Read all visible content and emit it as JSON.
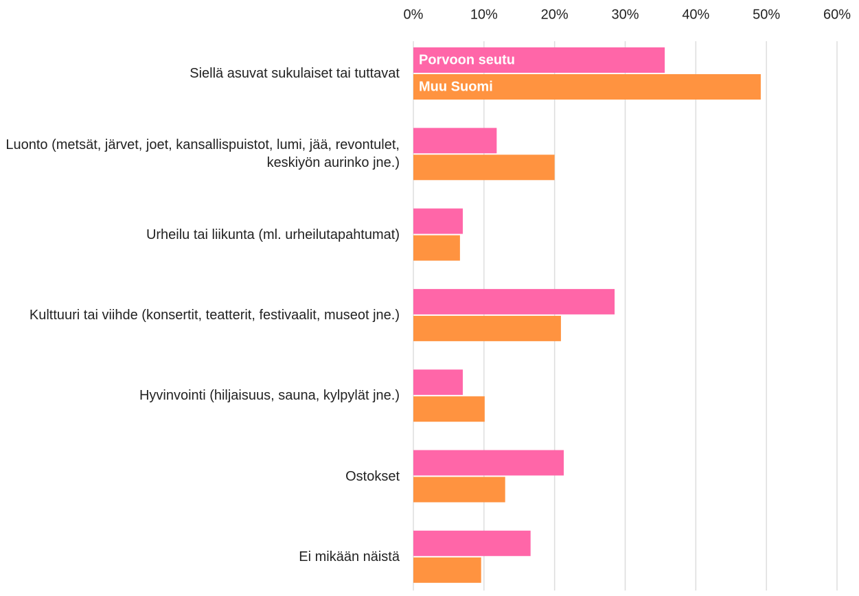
{
  "chart_data": {
    "type": "hbar",
    "categories": [
      "Siellä asuvat sukulaiset tai tuttavat",
      "Luonto (metsät, järvet, joet, kansallispuistot, lumi, jää, revontulet, keskiyön aurinko jne.)",
      "Urheilu tai liikunta (ml. urheilutapahtumat)",
      "Kulttuuri tai viihde (konsertit, teatterit, festivaalit, museot jne.)",
      "Hyvinvointi (hiljaisuus, sauna, kylpylät jne.)",
      "Ostokset",
      "Ei mikään näistä"
    ],
    "series": [
      {
        "name": "Porvoon seutu",
        "color": "#ff66a8",
        "values": [
          35.6,
          11.8,
          7.0,
          28.5,
          7.0,
          21.3,
          16.6
        ]
      },
      {
        "name": "Muu Suomi",
        "color": "#ff9340",
        "values": [
          49.2,
          20.0,
          6.6,
          20.9,
          10.1,
          13.0,
          9.6
        ]
      }
    ],
    "xlim": [
      0,
      60
    ],
    "xticks": [
      {
        "value": 0,
        "label": "0%"
      },
      {
        "value": 10,
        "label": "10%"
      },
      {
        "value": 20,
        "label": "20%"
      },
      {
        "value": 30,
        "label": "30%"
      },
      {
        "value": 40,
        "label": "40%"
      },
      {
        "value": 50,
        "label": "50%"
      },
      {
        "value": 60,
        "label": "60%"
      }
    ],
    "grid": true
  }
}
